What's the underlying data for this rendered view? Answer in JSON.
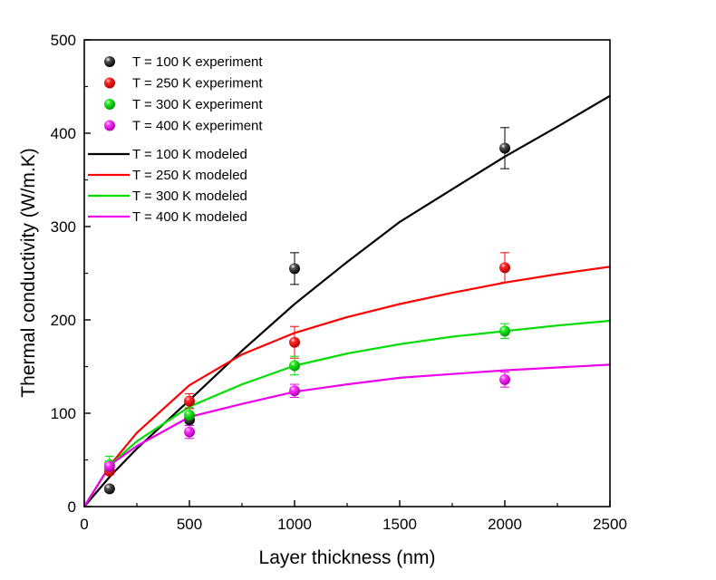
{
  "chart_data": {
    "type": "scatter",
    "title": "",
    "xlabel": "Layer thickness (nm)",
    "ylabel": "Thermal conductivity (W/m.K)",
    "xlim": [
      0,
      2500
    ],
    "ylim": [
      0,
      500
    ],
    "x_ticks": [
      0,
      500,
      1000,
      1500,
      2000,
      2500
    ],
    "y_ticks": [
      0,
      100,
      200,
      300,
      400,
      500
    ],
    "x_tick_labels": [
      "0",
      "500",
      "1000",
      "1500",
      "2000",
      "2500"
    ],
    "y_tick_labels": [
      "0",
      "100",
      "200",
      "300",
      "400",
      "500"
    ],
    "legend_position": "top-left",
    "grid": false,
    "series": [
      {
        "name": "T = 100 K experiment",
        "kind": "points",
        "color": "#000000",
        "x": [
          120,
          500,
          1000,
          2000
        ],
        "y": [
          19,
          93,
          255,
          384
        ],
        "err": [
          3,
          6,
          17,
          22
        ]
      },
      {
        "name": "T = 250 K experiment",
        "kind": "points",
        "color": "#ff0000",
        "x": [
          120,
          500,
          1000,
          2000
        ],
        "y": [
          38,
          113,
          176,
          256
        ],
        "err": [
          4,
          8,
          17,
          16
        ]
      },
      {
        "name": "T = 300 K experiment",
        "kind": "points",
        "color": "#00dd00",
        "x": [
          120,
          500,
          1000,
          2000
        ],
        "y": [
          45,
          98,
          151,
          188
        ],
        "err": [
          9,
          8,
          10,
          8
        ]
      },
      {
        "name": "T = 400 K experiment",
        "kind": "points",
        "color": "#ee00ee",
        "x": [
          120,
          500,
          1000,
          2000
        ],
        "y": [
          43,
          80,
          124,
          136
        ],
        "err": [
          6,
          7,
          7,
          8
        ]
      },
      {
        "name": "T = 100 K modeled",
        "kind": "line",
        "color": "#000000",
        "x": [
          0,
          125,
          250,
          500,
          750,
          1000,
          1250,
          1500,
          1750,
          2000,
          2250,
          2500
        ],
        "y": [
          0,
          33,
          62,
          114,
          167,
          217,
          262,
          305,
          340,
          375,
          407,
          440
        ]
      },
      {
        "name": "T = 250 K modeled",
        "kind": "line",
        "color": "#ff0000",
        "x": [
          0,
          125,
          250,
          500,
          750,
          1000,
          1250,
          1500,
          1750,
          2000,
          2250,
          2500
        ],
        "y": [
          0,
          45,
          79,
          130,
          163,
          186,
          203,
          217,
          229,
          240,
          249,
          257
        ]
      },
      {
        "name": "T = 300 K modeled",
        "kind": "line",
        "color": "#00dd00",
        "x": [
          0,
          125,
          250,
          500,
          750,
          1000,
          1250,
          1500,
          1750,
          2000,
          2250,
          2500
        ],
        "y": [
          0,
          45,
          70,
          107,
          131,
          151,
          164,
          174,
          182,
          188,
          194,
          199
        ]
      },
      {
        "name": "T = 400 K modeled",
        "kind": "line",
        "color": "#ee00ee",
        "x": [
          0,
          125,
          250,
          500,
          750,
          1000,
          1250,
          1500,
          1750,
          2000,
          2250,
          2500
        ],
        "y": [
          0,
          45,
          65,
          96,
          110,
          123,
          131,
          138,
          142,
          146,
          149,
          152
        ]
      }
    ]
  }
}
